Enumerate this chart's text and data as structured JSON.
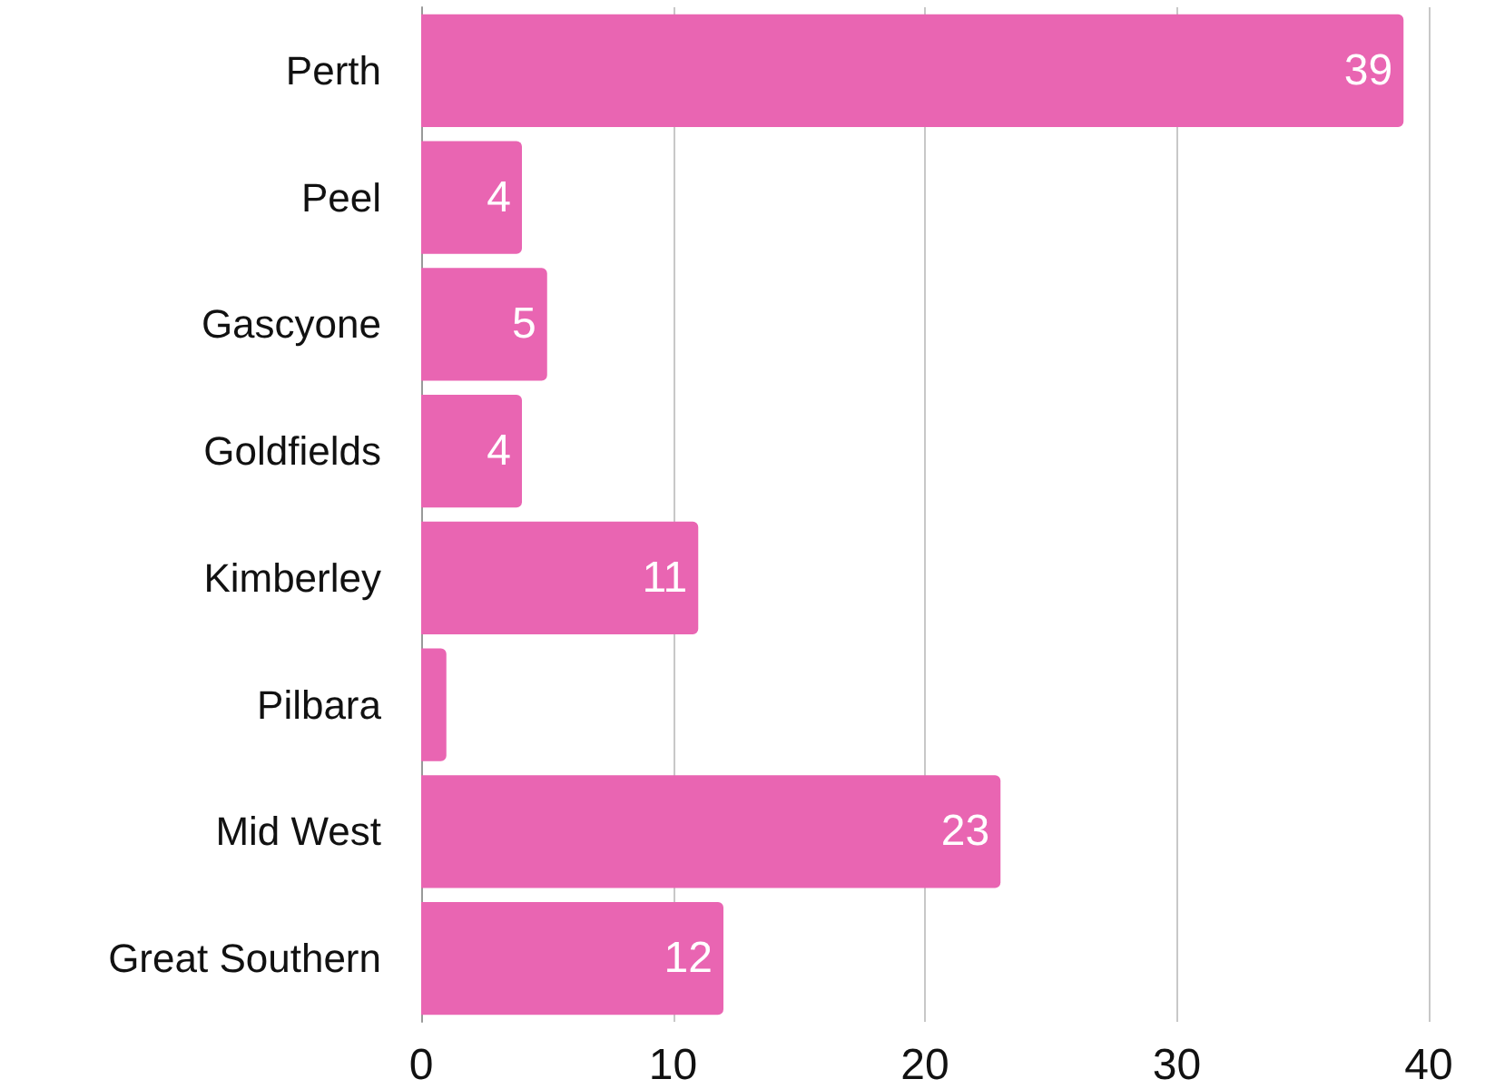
{
  "chart_data": {
    "type": "bar",
    "orientation": "horizontal",
    "categories": [
      "Perth",
      "Peel",
      "Gascyone",
      "Goldfields",
      "Kimberley",
      "Pilbara",
      "Mid West",
      "Great Southern"
    ],
    "values": [
      39,
      4,
      5,
      4,
      11,
      1,
      23,
      12
    ],
    "value_labels": [
      "39",
      "4",
      "5",
      "4",
      "11",
      null,
      "23",
      "12"
    ],
    "color": "#e965b2",
    "xlim": [
      0,
      40
    ],
    "xticks": [
      0,
      10,
      20,
      30,
      40
    ],
    "grid": "x"
  }
}
